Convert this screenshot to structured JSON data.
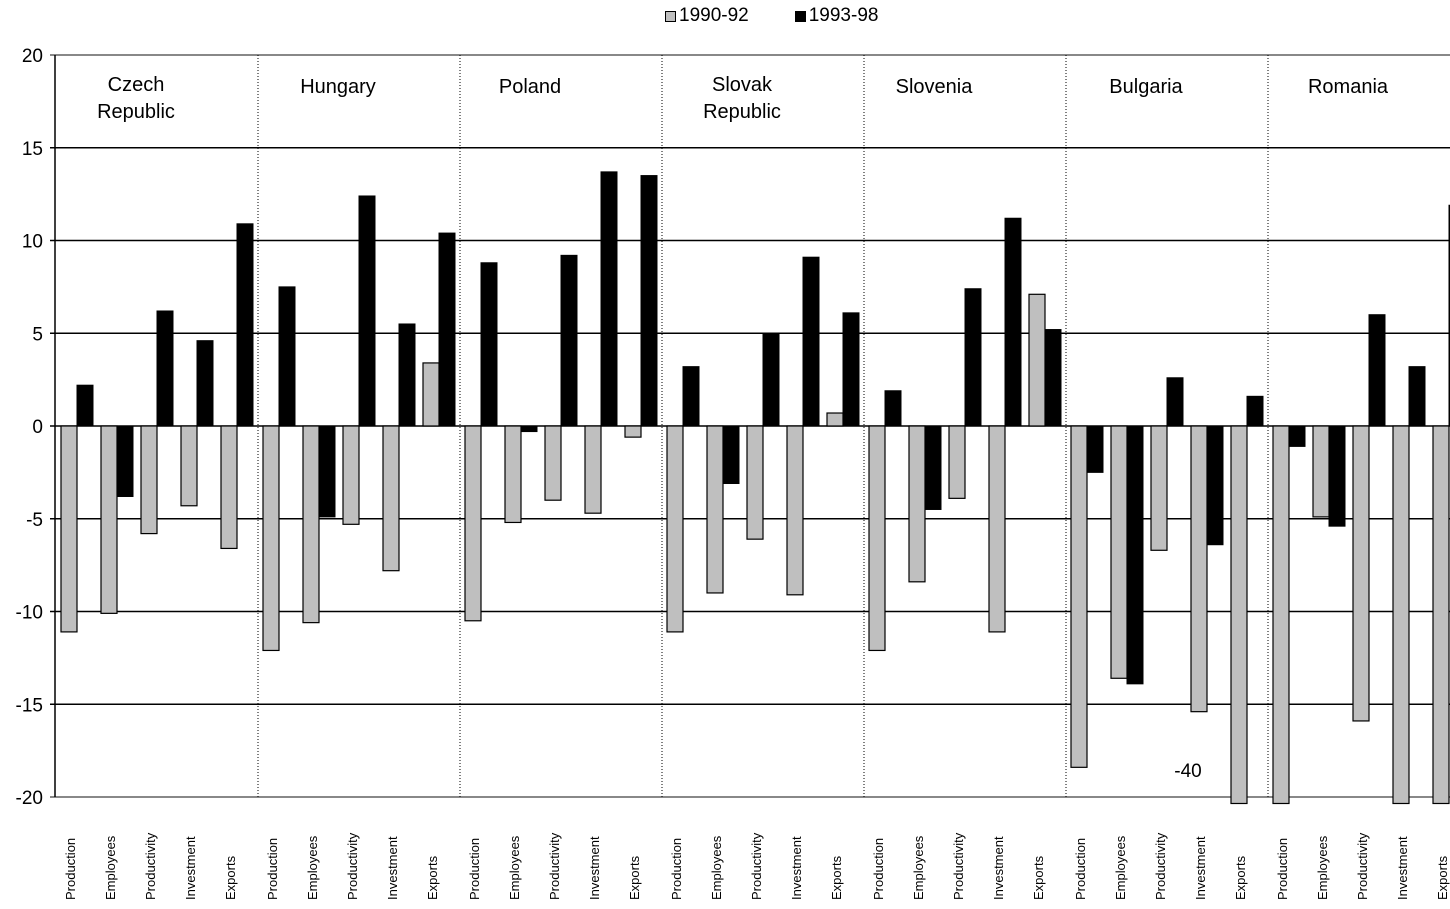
{
  "chart_data": {
    "type": "bar",
    "ylim": [
      -20,
      20
    ],
    "yticks": [
      -20,
      -15,
      -10,
      -5,
      0,
      5,
      10,
      15,
      20
    ],
    "grid": true,
    "legend_position": "top-center",
    "annotation": "-40",
    "indicators": [
      "Production",
      "Employees",
      "Productivity",
      "Investment",
      "Exports"
    ],
    "colors": {
      "1990-92": "#bfbfbf",
      "1993-98": "#000000"
    },
    "series": [
      {
        "name": "1990-92"
      },
      {
        "name": "1993-98"
      }
    ],
    "groups": [
      {
        "label": [
          "Czech",
          "Republic"
        ],
        "values_1990_92": [
          -11.1,
          -10.1,
          -5.8,
          -4.3,
          -6.6
        ],
        "values_1993_98": [
          2.2,
          -3.8,
          6.2,
          4.6,
          10.9
        ]
      },
      {
        "label": [
          "Hungary"
        ],
        "values_1990_92": [
          -12.1,
          -10.6,
          -5.3,
          -7.8,
          3.4
        ],
        "values_1993_98": [
          7.5,
          -4.9,
          12.4,
          5.5,
          10.4
        ]
      },
      {
        "label": [
          "Poland"
        ],
        "values_1990_92": [
          -10.5,
          -5.2,
          -4.0,
          -4.7,
          -0.6
        ],
        "values_1993_98": [
          8.8,
          -0.3,
          9.2,
          13.7,
          13.5
        ]
      },
      {
        "label": [
          "Slovak",
          "Republic"
        ],
        "values_1990_92": [
          -11.1,
          -9.0,
          -6.1,
          -9.1,
          0.7
        ],
        "values_1993_98": [
          3.2,
          -3.1,
          5.0,
          9.1,
          6.1
        ]
      },
      {
        "label": [
          "Slovenia"
        ],
        "values_1990_92": [
          -12.1,
          -8.4,
          -3.9,
          -11.1,
          7.1
        ],
        "values_1993_98": [
          1.9,
          -4.5,
          7.4,
          11.2,
          5.2
        ]
      },
      {
        "label": [
          "Bulgaria"
        ],
        "values_1990_92": [
          -18.4,
          -13.6,
          -6.7,
          -15.4,
          -40
        ],
        "values_1993_98": [
          -2.5,
          -13.9,
          2.6,
          -6.4,
          1.6
        ]
      },
      {
        "label": [
          "Romania"
        ],
        "values_1990_92": [
          -20.5,
          -4.9,
          -15.9,
          -20.5,
          -20.5
        ],
        "values_1993_98": [
          -1.1,
          -5.4,
          6.0,
          3.2,
          11.9
        ]
      }
    ]
  }
}
